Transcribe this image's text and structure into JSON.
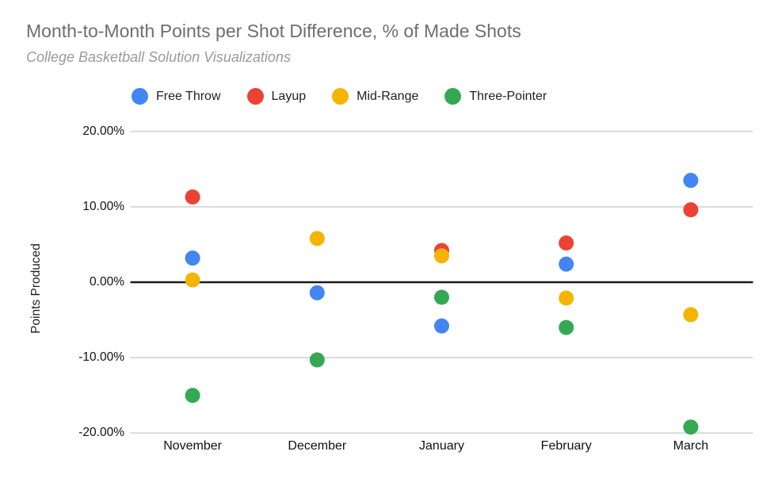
{
  "title": "Month-to-Month Points per Shot Difference, % of Made Shots",
  "subtitle": "College Basketball Solution Visualizations",
  "chart_data": {
    "type": "scatter",
    "title": "Month-to-Month Points per Shot Difference, % of Made Shots",
    "subtitle": "College Basketball Solution Visualizations",
    "categories": [
      "November",
      "December",
      "January",
      "February",
      "March"
    ],
    "series": [
      {
        "name": "Free Throw",
        "color": "#4285F4",
        "values": [
          3.2,
          -1.4,
          -5.8,
          2.4,
          13.5
        ]
      },
      {
        "name": "Layup",
        "color": "#EA4335",
        "values": [
          11.3,
          null,
          4.2,
          5.2,
          9.6
        ]
      },
      {
        "name": "Mid-Range",
        "color": "#F4B400",
        "values": [
          0.3,
          5.8,
          3.5,
          -2.1,
          -4.3
        ]
      },
      {
        "name": "Three-Pointer",
        "color": "#34A853",
        "values": [
          -15.0,
          -10.3,
          -2.0,
          -6.0,
          -19.2
        ]
      }
    ],
    "xlabel": "",
    "ylabel": "Points Produced",
    "ylim": [
      -20,
      20
    ],
    "ytick_labels": [
      "20.00%",
      "10.00%",
      "0.00%",
      "-10.00%",
      "-20.00%"
    ],
    "ytick_values": [
      20,
      10,
      0,
      -10,
      -20
    ],
    "value_unit": "percent",
    "grid": true,
    "legend_position": "top",
    "colors": {
      "gridline": "#dadada",
      "zero_line": "#1a1a1a",
      "tick_text": "#111111",
      "title_text": "#6e6e6e",
      "subtitle_text": "#9a9a9a"
    }
  }
}
